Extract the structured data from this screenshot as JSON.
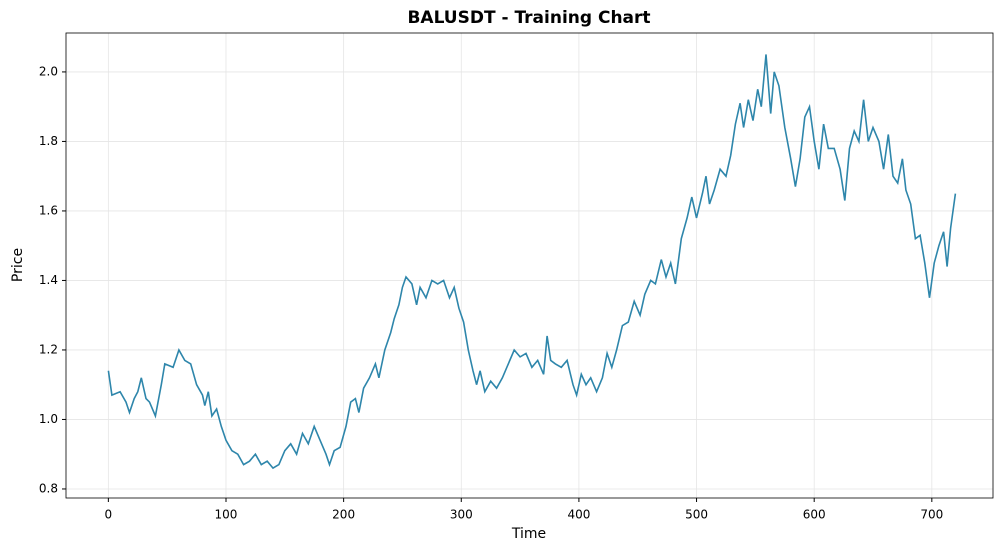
{
  "chart_data": {
    "type": "line",
    "title": "BALUSDT - Training Chart",
    "xlabel": "Time",
    "ylabel": "Price",
    "xlim": [
      -36,
      752
    ],
    "ylim": [
      0.774,
      2.112
    ],
    "xticks": [
      0,
      100,
      200,
      300,
      400,
      500,
      600,
      700
    ],
    "yticks": [
      0.8,
      {
        "value": 1,
        "label": "1.0"
      },
      1.2,
      1.4,
      1.6,
      1.8,
      {
        "value": 2,
        "label": "2.0"
      }
    ],
    "grid": true,
    "series": [
      {
        "color": "#2e86ab",
        "x": [
          0,
          3,
          10,
          15,
          18,
          22,
          25,
          28,
          32,
          35,
          40,
          45,
          48,
          55,
          60,
          65,
          70,
          75,
          80,
          82,
          85,
          88,
          92,
          96,
          100,
          105,
          110,
          115,
          120,
          125,
          130,
          135,
          140,
          145,
          150,
          155,
          160,
          165,
          170,
          175,
          180,
          185,
          188,
          192,
          197,
          202,
          206,
          210,
          213,
          217,
          222,
          227,
          230,
          235,
          240,
          243,
          247,
          250,
          253,
          258,
          262,
          265,
          270,
          275,
          280,
          285,
          290,
          294,
          298,
          302,
          306,
          310,
          313,
          316,
          320,
          325,
          330,
          335,
          340,
          345,
          350,
          355,
          360,
          365,
          370,
          373,
          376,
          380,
          385,
          390,
          395,
          398,
          402,
          406,
          410,
          415,
          420,
          424,
          428,
          432,
          437,
          442,
          447,
          452,
          456,
          461,
          465,
          470,
          474,
          478,
          482,
          487,
          492,
          496,
          500,
          505,
          508,
          511,
          515,
          520,
          525,
          529,
          533,
          537,
          540,
          544,
          548,
          552,
          555,
          559,
          563,
          566,
          570,
          575,
          580,
          584,
          588,
          592,
          596,
          600,
          604,
          608,
          612,
          617,
          622,
          626,
          630,
          634,
          638,
          642,
          646,
          650,
          655,
          659,
          663,
          667,
          671,
          675,
          678,
          682,
          686,
          690,
          694,
          698,
          702,
          706,
          710,
          713,
          716,
          720
        ],
        "values": [
          1.14,
          1.07,
          1.08,
          1.05,
          1.02,
          1.06,
          1.08,
          1.12,
          1.06,
          1.05,
          1.01,
          1.1,
          1.16,
          1.15,
          1.2,
          1.17,
          1.16,
          1.1,
          1.07,
          1.04,
          1.08,
          1.01,
          1.03,
          0.98,
          0.94,
          0.91,
          0.9,
          0.87,
          0.88,
          0.9,
          0.87,
          0.88,
          0.86,
          0.87,
          0.91,
          0.93,
          0.9,
          0.96,
          0.93,
          0.98,
          0.94,
          0.9,
          0.87,
          0.91,
          0.92,
          0.98,
          1.05,
          1.06,
          1.02,
          1.09,
          1.12,
          1.16,
          1.12,
          1.2,
          1.25,
          1.29,
          1.33,
          1.38,
          1.41,
          1.39,
          1.33,
          1.38,
          1.35,
          1.4,
          1.39,
          1.4,
          1.35,
          1.38,
          1.32,
          1.28,
          1.2,
          1.14,
          1.1,
          1.14,
          1.08,
          1.11,
          1.09,
          1.12,
          1.16,
          1.2,
          1.18,
          1.19,
          1.15,
          1.17,
          1.13,
          1.24,
          1.17,
          1.16,
          1.15,
          1.17,
          1.1,
          1.07,
          1.13,
          1.1,
          1.12,
          1.08,
          1.12,
          1.19,
          1.15,
          1.2,
          1.27,
          1.28,
          1.34,
          1.3,
          1.36,
          1.4,
          1.39,
          1.46,
          1.41,
          1.45,
          1.39,
          1.52,
          1.58,
          1.64,
          1.58,
          1.65,
          1.7,
          1.62,
          1.66,
          1.72,
          1.7,
          1.76,
          1.85,
          1.91,
          1.84,
          1.92,
          1.86,
          1.95,
          1.9,
          2.05,
          1.88,
          2.0,
          1.96,
          1.84,
          1.75,
          1.67,
          1.75,
          1.87,
          1.9,
          1.8,
          1.72,
          1.85,
          1.78,
          1.78,
          1.72,
          1.63,
          1.78,
          1.83,
          1.8,
          1.92,
          1.8,
          1.84,
          1.8,
          1.72,
          1.82,
          1.7,
          1.68,
          1.75,
          1.66,
          1.62,
          1.52,
          1.53,
          1.45,
          1.35,
          1.45,
          1.5,
          1.54,
          1.44,
          1.55,
          1.65
        ]
      }
    ]
  }
}
